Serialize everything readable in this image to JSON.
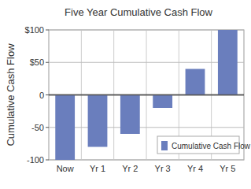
{
  "chart_data": {
    "type": "bar",
    "title": "Five Year Cumulative Cash Flow",
    "y_label": "Cumulative Cash Flow",
    "categories": [
      "Now",
      "Yr 1",
      "Yr 2",
      "Yr 3",
      "Yr 4",
      "Yr 5"
    ],
    "series": [
      {
        "name": "Cumulative Cash Flow",
        "color": "#6a7ebd",
        "values": [
          -100,
          -80,
          -60,
          -20,
          40,
          100
        ]
      }
    ],
    "ylim": [
      -100,
      100
    ],
    "yticks": [
      -100,
      -50,
      0,
      {
        "value": 50,
        "label": "$50"
      },
      {
        "value": 100,
        "label": "$100"
      }
    ],
    "grid": true,
    "legend": "lower right"
  }
}
